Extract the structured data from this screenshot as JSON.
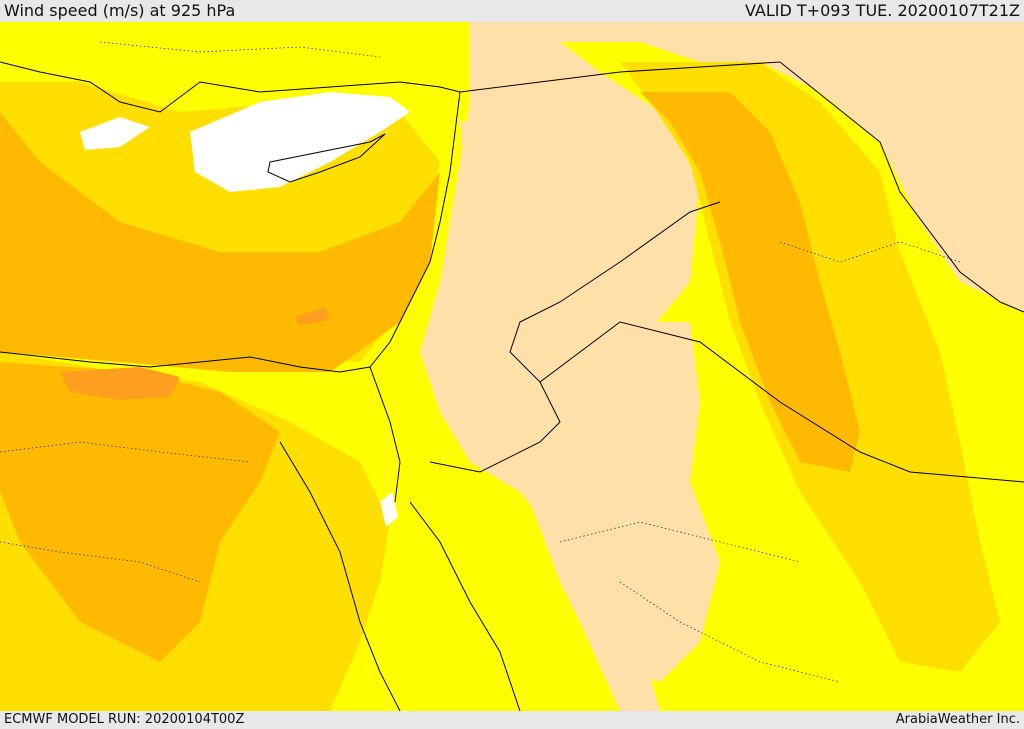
{
  "header": {
    "title": "Wind speed (m/s) at 925 hPa",
    "valid_time": "VALID T+093 TUE. 20200107T21Z"
  },
  "footer": {
    "model_run": "ECMWF MODEL RUN: 20200104T00Z",
    "credit": "ArabiaWeather Inc."
  },
  "colors": {
    "calm": "#ffffff",
    "light": "#fee0a8",
    "yellow": "#ffff00",
    "gold": "#ffdf00",
    "orange": "#ffba00",
    "dark_orange": "#ff9f20",
    "border": "#000000"
  }
}
